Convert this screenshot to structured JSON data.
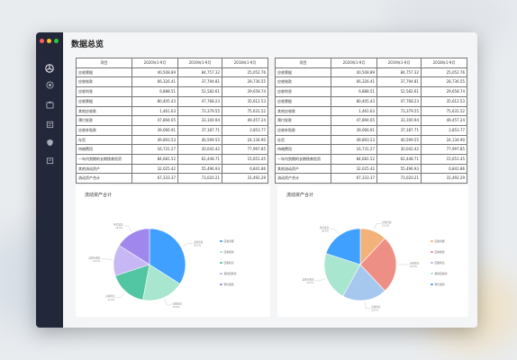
{
  "window": {
    "dot_colors": [
      "#ff5f57",
      "#febc2e",
      "#28c840"
    ]
  },
  "sidebar": {
    "icons": [
      "gauge-icon",
      "target-icon",
      "wallet-icon",
      "book-icon",
      "shield-icon",
      "archive-icon"
    ]
  },
  "page": {
    "title": "数据总览"
  },
  "tables": [
    {
      "headers": [
        "项目",
        "2020年1-9月",
        "2019年1-9月",
        "2018年1-9月"
      ],
      "rows": [
        [
          "应收票据",
          "40,508.89",
          "84,757.32",
          "25,052.76"
        ],
        [
          "应收账款",
          "66,326.41",
          "37,794.81",
          "28,736.55"
        ],
        [
          "应收利息",
          "6,888.51",
          "52,582.61",
          "29,658.74"
        ],
        [
          "应收票据",
          "80,405.43",
          "47,768.23",
          "35,612.53"
        ],
        [
          "其他应收款",
          "1,461.63",
          "73,379.55",
          "75,631.52"
        ],
        [
          "预付发款",
          "47,894.65",
          "33,100.94",
          "49,457.24"
        ],
        [
          "应收补贴款",
          "39,066.91",
          "37,187.71",
          "2,853.77"
        ],
        [
          "存货",
          "49,893.53",
          "40,599.55",
          "24,134.90"
        ],
        [
          "待摊费用",
          "16,731.27",
          "30,042.42",
          "77,997.85"
        ],
        [
          "一年内到期的长期债券投资",
          "84,681.52",
          "62,448.71",
          "15,651.45"
        ],
        [
          "其他流动资产",
          "32,025.42",
          "55,496.93",
          "6,841.86"
        ],
        [
          "流动资产合计",
          "67,333.37",
          "73,020.21",
          "31,492.29"
        ]
      ]
    },
    {
      "headers": [
        "项目",
        "2020年1-9月",
        "2019年1-9月",
        "2018年1-9月"
      ],
      "rows": [
        [
          "应收票据",
          "40,508.89",
          "84,757.32",
          "25,052.76"
        ],
        [
          "应收账款",
          "66,326.41",
          "37,794.81",
          "28,736.55"
        ],
        [
          "应收利息",
          "6,888.51",
          "52,582.61",
          "29,658.74"
        ],
        [
          "应收票据",
          "80,405.43",
          "47,768.23",
          "35,612.53"
        ],
        [
          "其他应收款",
          "1,461.63",
          "73,379.55",
          "75,631.52"
        ],
        [
          "预付发款",
          "47,894.65",
          "33,100.94",
          "49,457.24"
        ],
        [
          "应收补贴款",
          "39,066.91",
          "37,187.71",
          "2,853.77"
        ],
        [
          "存货",
          "49,893.53",
          "40,599.55",
          "24,134.90"
        ],
        [
          "待摊费用",
          "16,731.27",
          "30,042.42",
          "77,997.85"
        ],
        [
          "一年内到期的长期债券投资",
          "84,681.52",
          "62,448.71",
          "15,651.45"
        ],
        [
          "其他流动资产",
          "32,025.42",
          "55,496.93",
          "6,841.86"
        ],
        [
          "流动资产合计",
          "67,333.37",
          "73,020.21",
          "31,492.29"
        ]
      ]
    }
  ],
  "chart_data": [
    {
      "type": "pie",
      "title": "流动资产合计",
      "categories": [
        "应收票据",
        "应收账款",
        "应收利息",
        "其他应收款",
        "预付发款"
      ],
      "values": [
        34,
        19,
        17,
        14,
        16
      ],
      "colors": [
        "#3fa0ff",
        "#a8e6cf",
        "#52c6a3",
        "#c7b8f5",
        "#9f87ee"
      ],
      "slice_labels": [
        {
          "name": "应收票据",
          "value": "34.0%"
        },
        {
          "name": "应收账款",
          "value": "19.0%"
        },
        {
          "name": "应收利息",
          "value": "17.0%"
        },
        {
          "name": "其他应收款",
          "value": "14.0%"
        },
        {
          "name": "预付发款",
          "value": "16.0%"
        }
      ],
      "legend_placement": "right"
    },
    {
      "type": "pie",
      "title": "流动资产合计",
      "categories": [
        "应收票据",
        "应收账款",
        "应收利息",
        "其他应收款",
        "预付发款"
      ],
      "values": [
        12,
        26,
        20,
        22,
        20
      ],
      "colors": [
        "#f3b27a",
        "#ee8f86",
        "#a7c8ee",
        "#a8e6cf",
        "#3fa0ff"
      ],
      "slice_labels": [
        {
          "name": "应收票据",
          "value": "12.0%"
        },
        {
          "name": "应收账款",
          "value": "26.0%"
        },
        {
          "name": "应收利息",
          "value": "20.0%"
        },
        {
          "name": "其他应收款",
          "value": "22.0%"
        },
        {
          "name": "预付发款",
          "value": "20.0%"
        }
      ],
      "legend_placement": "right"
    }
  ]
}
